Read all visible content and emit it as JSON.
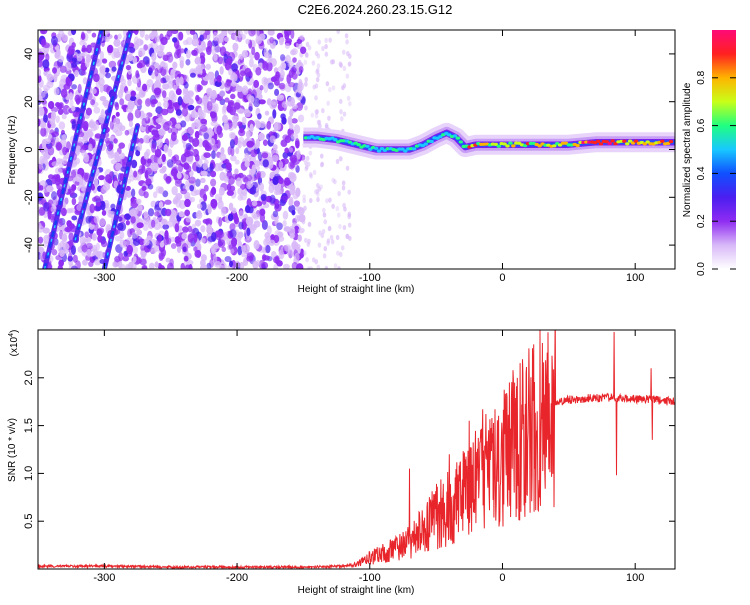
{
  "title": "C2E6.2024.260.23.15.G12",
  "chart_data": [
    {
      "type": "heatmap",
      "xlabel": "Height of straight line (km)",
      "ylabel": "Frequency (Hz)",
      "xlim": [
        -350,
        130
      ],
      "ylim": [
        -50,
        50
      ],
      "xticks": [
        -300,
        -200,
        -100,
        0,
        100
      ],
      "yticks": [
        -40,
        -20,
        0,
        20,
        40
      ],
      "colorbar": {
        "label": "Normalized spectral amplitude",
        "range": [
          0,
          1
        ],
        "ticks": [
          "0.0",
          "0.2",
          "0.4",
          "0.6",
          "0.8"
        ],
        "colormap": [
          "#ffffff",
          "#d8b8f8",
          "#8f2cf2",
          "#4b1ef0",
          "#1050ff",
          "#18c8ff",
          "#20ff80",
          "#c8ff18",
          "#ffb400",
          "#ff2020",
          "#ff0a78"
        ]
      },
      "features": {
        "noise_region_x": [
          -350,
          -150
        ],
        "sparse_noise_x": [
          -150,
          -115
        ],
        "onset_x": -150,
        "ridge": [
          {
            "x": -150,
            "y": 5
          },
          {
            "x": -140,
            "y": 5
          },
          {
            "x": -125,
            "y": 4
          },
          {
            "x": -110,
            "y": 2
          },
          {
            "x": -95,
            "y": 0
          },
          {
            "x": -80,
            "y": 0
          },
          {
            "x": -70,
            "y": 0
          },
          {
            "x": -60,
            "y": 2
          },
          {
            "x": -50,
            "y": 5
          },
          {
            "x": -42,
            "y": 7
          },
          {
            "x": -35,
            "y": 5
          },
          {
            "x": -28,
            "y": 1
          },
          {
            "x": -20,
            "y": 2
          },
          {
            "x": -10,
            "y": 2
          },
          {
            "x": 0,
            "y": 2
          },
          {
            "x": 20,
            "y": 2
          },
          {
            "x": 50,
            "y": 2
          },
          {
            "x": 70,
            "y": 3
          },
          {
            "x": 100,
            "y": 3
          },
          {
            "x": 130,
            "y": 3
          }
        ],
        "diagonal_streaks": [
          {
            "from": [
              -345,
              -50
            ],
            "to": [
              -302,
              50
            ]
          },
          {
            "from": [
              -322,
              -38
            ],
            "to": [
              -280,
              50
            ]
          },
          {
            "from": [
              -300,
              -50
            ],
            "to": [
              -275,
              10
            ]
          }
        ]
      }
    },
    {
      "type": "line",
      "xlabel": "Height of straight line (km)",
      "ylabel": "SNR (10 * v/v)",
      "y_multiplier": "(x10",
      "y_multiplier_exp": "4",
      "xlim": [
        -350,
        130
      ],
      "ylim": [
        0,
        25000
      ],
      "xticks": [
        -300,
        -200,
        -100,
        0,
        100
      ],
      "yticks": [
        5000,
        10000,
        15000,
        20000
      ],
      "ytick_labels": [
        "0.5",
        "1.0",
        "1.5",
        "2.0"
      ],
      "series": [
        {
          "color": "#e8252a",
          "envelope": [
            [
              -350,
              300
            ],
            [
              -300,
              300
            ],
            [
              -250,
              200
            ],
            [
              -200,
              200
            ],
            [
              -150,
              200
            ],
            [
              -120,
              300
            ],
            [
              -110,
              500
            ],
            [
              -100,
              1200
            ],
            [
              -90,
              1800
            ],
            [
              -80,
              2200
            ],
            [
              -70,
              3000
            ],
            [
              -60,
              4200
            ],
            [
              -50,
              5800
            ],
            [
              -40,
              6700
            ],
            [
              -30,
              8000
            ],
            [
              -20,
              9500
            ],
            [
              -10,
              11000
            ],
            [
              0,
              12500
            ],
            [
              10,
              13800
            ],
            [
              20,
              15500
            ],
            [
              30,
              16800
            ],
            [
              40,
              17400
            ],
            [
              50,
              17700
            ],
            [
              60,
              17800
            ],
            [
              70,
              17900
            ],
            [
              80,
              17900
            ],
            [
              90,
              17850
            ],
            [
              100,
              17800
            ],
            [
              110,
              17800
            ],
            [
              120,
              17600
            ],
            [
              130,
              17500
            ]
          ],
          "spikes": [
            [
              -70,
              10500
            ],
            [
              -40,
              12000
            ],
            [
              -25,
              15500
            ],
            [
              -15,
              16700
            ],
            [
              -8,
              15800
            ],
            [
              8,
              20800
            ],
            [
              12,
              12000
            ],
            [
              84,
              24800
            ],
            [
              86,
              9800
            ],
            [
              112,
              21000
            ],
            [
              113,
              13500
            ]
          ]
        }
      ]
    }
  ]
}
